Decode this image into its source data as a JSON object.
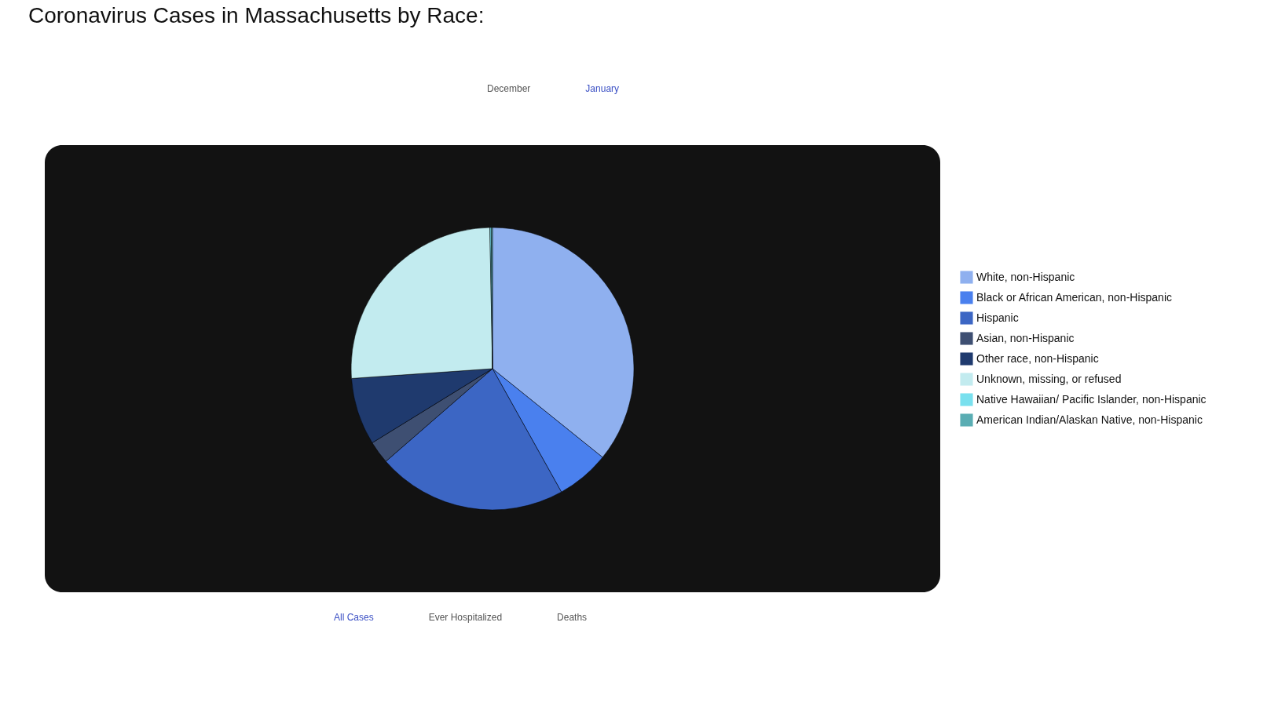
{
  "chart_data": {
    "type": "pie",
    "title": "Coronavirus Cases in Massachusetts by Race:",
    "categories": [
      "White, non-Hispanic",
      "Black or African American, non-Hispanic",
      "Hispanic",
      "Asian, non-Hispanic",
      "Other race, non-Hispanic",
      "Unknown, missing, or refused",
      "Native Hawaiian/ Pacific Islander, non-Hispanic",
      "American Indian/Alaskan Native, non-Hispanic"
    ],
    "values": [
      35.8,
      6.1,
      21.7,
      2.6,
      7.7,
      25.8,
      0.15,
      0.15
    ],
    "colors": [
      "#8fb0ef",
      "#4a80ee",
      "#3c66c4",
      "#3e4f72",
      "#1f3a6e",
      "#c2ebef",
      "#79e0ee",
      "#5aadb3"
    ],
    "legend": "right",
    "annotations": [
      "December",
      "January",
      "All Cases",
      "Ever Hospitalized",
      "Deaths"
    ]
  }
}
